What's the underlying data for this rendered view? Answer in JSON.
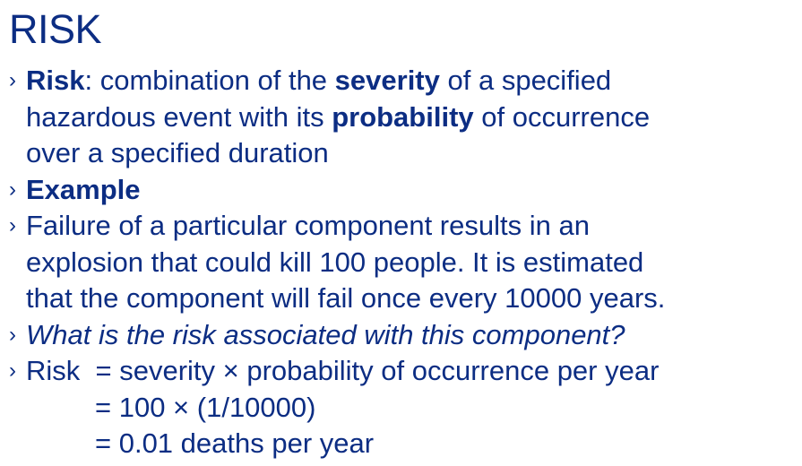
{
  "title": "RISK",
  "bullet_marker": "›",
  "definition": {
    "term": "Risk",
    "colon": ":",
    "text1": " combination of the ",
    "severity": "severity",
    "text2": " of a specified",
    "line2_pre": "hazardous event with its ",
    "probability": "probability",
    "line2_post": " of occurrence",
    "line3": "over a specified duration"
  },
  "example_heading": "Example",
  "example_text": {
    "line1": "Failure of a particular component results in an",
    "line2": "explosion that could kill 100 people. It is estimated",
    "line3": "that the component will fail once every 10000 years."
  },
  "question": "What is the risk associated with this component?",
  "calculation": {
    "line1": "Risk  = severity × probability of occurrence per year",
    "line2": "= 100 × (1/10000)",
    "line3": "= 0.01 deaths per year"
  }
}
